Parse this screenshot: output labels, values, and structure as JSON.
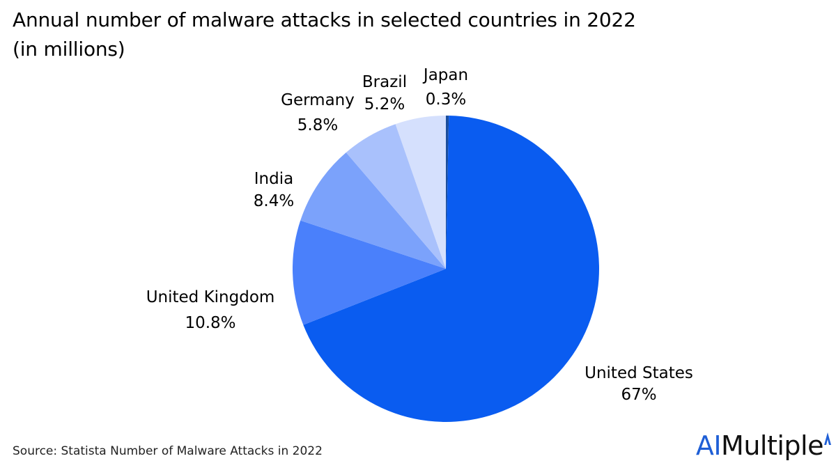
{
  "title": {
    "line1": "Annual number of malware attacks in selected countries in 2022",
    "line2": "(in millions)"
  },
  "source": "Source: Statista Number of Malware Attacks in 2022",
  "brand": {
    "ai": "AI",
    "rest": "Multiple"
  },
  "colors": {
    "united_states": "#0a5cf0",
    "united_kingdom": "#4a80fb",
    "india": "#7ba2fb",
    "germany": "#a9c1fc",
    "brazil": "#d5e0fd",
    "japan": "#1c4f9e",
    "brand_accent": "#1f5fd6"
  },
  "chart_data": {
    "type": "pie",
    "title": "Annual number of malware attacks in selected countries in 2022",
    "subtitle": "(in millions)",
    "slices": [
      {
        "name": "Japan",
        "value": 0.3,
        "label": "0.3%"
      },
      {
        "name": "United States",
        "value": 67,
        "label": "67%"
      },
      {
        "name": "United Kingdom",
        "value": 10.8,
        "label": "10.8%"
      },
      {
        "name": "India",
        "value": 8.4,
        "label": "8.4%"
      },
      {
        "name": "Germany",
        "value": 5.8,
        "label": "5.8%"
      },
      {
        "name": "Brazil",
        "value": 5.2,
        "label": "5.2%"
      }
    ]
  }
}
